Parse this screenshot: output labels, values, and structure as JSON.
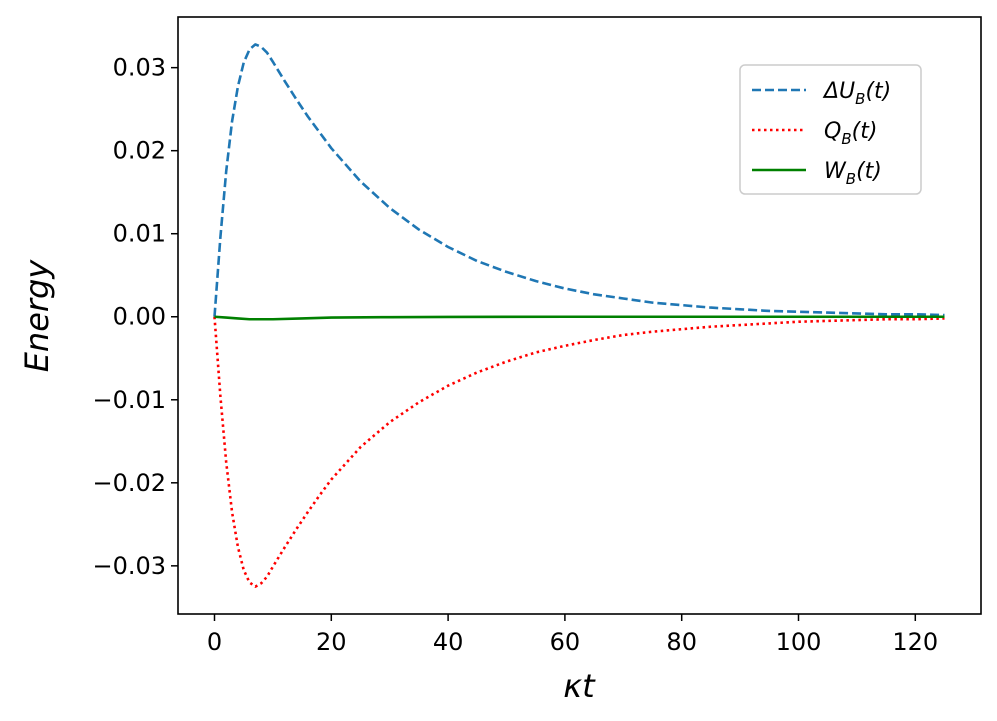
{
  "chart_data": {
    "type": "line",
    "xlabel": "κt",
    "ylabel": "Energy",
    "xlim": [
      -6.25,
      131.25
    ],
    "ylim": [
      -0.0358,
      0.0361
    ],
    "x_ticks": [
      0,
      20,
      40,
      60,
      80,
      100,
      120
    ],
    "x_tick_labels": [
      "0",
      "20",
      "40",
      "60",
      "80",
      "100",
      "120"
    ],
    "y_ticks": [
      0.03,
      0.02,
      0.01,
      0.0,
      -0.01,
      -0.02,
      -0.03
    ],
    "y_tick_labels": [
      "0.03",
      "0.02",
      "0.01",
      "0.00",
      "−0.01",
      "−0.02",
      "−0.03"
    ],
    "grid": false,
    "legend_position": "top-right",
    "series": [
      {
        "name": "ΔU_B(t)",
        "label_main": "ΔU",
        "label_sub": "B",
        "label_tail": "(t)",
        "color": "#1f77b4",
        "style": "dashed",
        "x": [
          0,
          1,
          2,
          3,
          4,
          5,
          6,
          7,
          8,
          9,
          10,
          12,
          14,
          16,
          18,
          20,
          25,
          30,
          35,
          40,
          45,
          50,
          55,
          60,
          65,
          70,
          75,
          80,
          85,
          90,
          95,
          100,
          105,
          110,
          115,
          120,
          125
        ],
        "values": [
          0.0,
          0.0095,
          0.0175,
          0.0235,
          0.0277,
          0.0306,
          0.0322,
          0.0328,
          0.0325,
          0.0318,
          0.0307,
          0.0284,
          0.0262,
          0.0241,
          0.0222,
          0.0203,
          0.0163,
          0.0131,
          0.0105,
          0.0084,
          0.0067,
          0.0054,
          0.0043,
          0.0034,
          0.0027,
          0.0022,
          0.0017,
          0.0014,
          0.0011,
          0.0009,
          0.0007,
          0.0006,
          0.0005,
          0.0004,
          0.0003,
          0.0003,
          0.0002
        ]
      },
      {
        "name": "Q_B(t)",
        "label_main": "Q",
        "label_sub": "B",
        "label_tail": "(t)",
        "color": "#ff0000",
        "style": "dotted",
        "x": [
          0,
          1,
          2,
          3,
          4,
          5,
          6,
          7,
          8,
          9,
          10,
          12,
          14,
          16,
          18,
          20,
          25,
          30,
          35,
          40,
          45,
          50,
          55,
          60,
          65,
          70,
          75,
          80,
          85,
          90,
          95,
          100,
          105,
          110,
          115,
          120,
          125
        ],
        "values": [
          0.0,
          -0.0095,
          -0.0175,
          -0.0235,
          -0.0277,
          -0.0305,
          -0.032,
          -0.0325,
          -0.0321,
          -0.0313,
          -0.0301,
          -0.0278,
          -0.0256,
          -0.0235,
          -0.0215,
          -0.0196,
          -0.0157,
          -0.0127,
          -0.0103,
          -0.0083,
          -0.0067,
          -0.0054,
          -0.0043,
          -0.0035,
          -0.0028,
          -0.0022,
          -0.0018,
          -0.0015,
          -0.0012,
          -0.001,
          -0.0008,
          -0.0006,
          -0.0005,
          -0.0004,
          -0.0003,
          -0.0003,
          -0.0002
        ]
      },
      {
        "name": "W_B(t)",
        "label_main": "W",
        "label_sub": "B",
        "label_tail": "(t)",
        "color": "#008000",
        "style": "solid",
        "x": [
          0,
          2,
          4,
          6,
          8,
          10,
          15,
          20,
          30,
          40,
          60,
          80,
          100,
          125
        ],
        "values": [
          0.0,
          -0.0001,
          -0.0002,
          -0.0003,
          -0.0003,
          -0.0003,
          -0.0002,
          -0.0001,
          -5e-05,
          -2e-05,
          0.0,
          0.0,
          0.0,
          0.0
        ]
      }
    ]
  }
}
